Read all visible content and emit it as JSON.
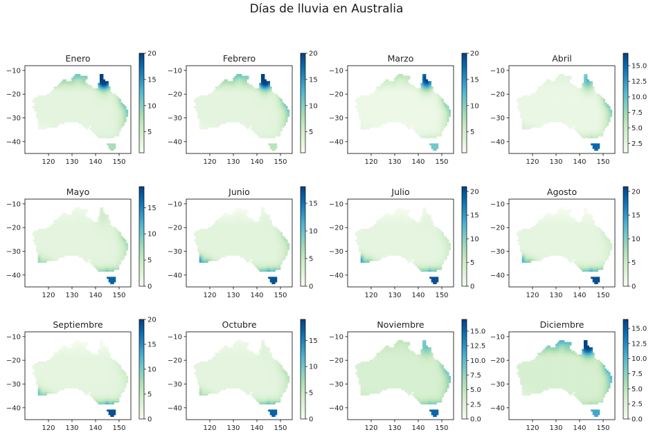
{
  "figure": {
    "title": "Días de lluvia en Australia"
  },
  "colors": {
    "colormap": "GnBu",
    "stops": [
      "#f7fcf0",
      "#e0f3db",
      "#ccebc5",
      "#a8ddb5",
      "#7bccc4",
      "#4eb3d3",
      "#2b8cbe",
      "#0868ac",
      "#084081"
    ]
  },
  "chart_data": [
    {
      "type": "heatmap",
      "title": "Enero",
      "xlim": [
        110,
        155
      ],
      "ylim": [
        -45,
        -8
      ],
      "xticks": [
        "120",
        "130",
        "140",
        "150"
      ],
      "yticks": [
        "−10",
        "−20",
        "−30",
        "−40"
      ],
      "colorbar": {
        "range": [
          1,
          20
        ],
        "ticks": [
          5,
          10,
          15,
          20
        ],
        "tick_labels": [
          "5",
          "10",
          "15",
          "20"
        ]
      },
      "regions": {
        "north": 11,
        "cape_york": 19,
        "east_coast": 12,
        "interior": 3,
        "southwest": 2,
        "southeast": 4,
        "tasmania": 8
      }
    },
    {
      "type": "heatmap",
      "title": "Febrero",
      "xlim": [
        110,
        155
      ],
      "ylim": [
        -45,
        -8
      ],
      "xticks": [
        "120",
        "130",
        "140",
        "150"
      ],
      "yticks": [
        "−10",
        "−20",
        "−30",
        "−40"
      ],
      "colorbar": {
        "range": [
          1,
          20
        ],
        "ticks": [
          5,
          10,
          15,
          20
        ],
        "tick_labels": [
          "5",
          "10",
          "15",
          "20"
        ]
      },
      "regions": {
        "north": 11,
        "cape_york": 19,
        "east_coast": 12,
        "interior": 3,
        "southwest": 2,
        "southeast": 4,
        "tasmania": 7
      }
    },
    {
      "type": "heatmap",
      "title": "Marzo",
      "xlim": [
        110,
        155
      ],
      "ylim": [
        -45,
        -8
      ],
      "xticks": [
        "120",
        "130",
        "140",
        "150"
      ],
      "yticks": [
        "−10",
        "−20",
        "−30",
        "−40"
      ],
      "colorbar": {
        "range": [
          1,
          20
        ],
        "ticks": [
          5,
          10,
          15,
          20
        ],
        "tick_labels": [
          "5",
          "10",
          "15",
          "20"
        ]
      },
      "regions": {
        "north": 7,
        "cape_york": 17,
        "east_coast": 11,
        "interior": 2,
        "southwest": 3,
        "southeast": 5,
        "tasmania": 11
      }
    },
    {
      "type": "heatmap",
      "title": "Abril",
      "xlim": [
        110,
        155
      ],
      "ylim": [
        -45,
        -8
      ],
      "xticks": [
        "120",
        "130",
        "140",
        "150"
      ],
      "yticks": [
        "−10",
        "−20",
        "−30",
        "−40"
      ],
      "colorbar": {
        "range": [
          1,
          17
        ],
        "ticks": [
          2.5,
          5,
          7.5,
          10,
          12.5,
          15
        ],
        "tick_labels": [
          "2.5",
          "5.0",
          "7.5",
          "10.0",
          "12.5",
          "15.0"
        ]
      },
      "regions": {
        "north": 3,
        "cape_york": 10,
        "east_coast": 10,
        "interior": 2,
        "southwest": 4,
        "southeast": 6,
        "tasmania": 15
      }
    },
    {
      "type": "heatmap",
      "title": "Mayo",
      "xlim": [
        110,
        155
      ],
      "ylim": [
        -45,
        -8
      ],
      "xticks": [
        "120",
        "130",
        "140",
        "150"
      ],
      "yticks": [
        "−10",
        "−20",
        "−30",
        "−40"
      ],
      "colorbar": {
        "range": [
          0,
          19
        ],
        "ticks": [
          0,
          5,
          10,
          15
        ],
        "tick_labels": [
          "0",
          "5",
          "10",
          "15"
        ]
      },
      "regions": {
        "north": 1,
        "cape_york": 5,
        "east_coast": 8,
        "interior": 2,
        "southwest": 9,
        "southeast": 10,
        "tasmania": 17
      }
    },
    {
      "type": "heatmap",
      "title": "Junio",
      "xlim": [
        110,
        155
      ],
      "ylim": [
        -45,
        -8
      ],
      "xticks": [
        "120",
        "130",
        "140",
        "150"
      ],
      "yticks": [
        "−10",
        "−20",
        "−30",
        "−40"
      ],
      "colorbar": {
        "range": [
          0,
          18
        ],
        "ticks": [
          0,
          5,
          10,
          15
        ],
        "tick_labels": [
          "0",
          "5",
          "10",
          "15"
        ]
      },
      "regions": {
        "north": 0,
        "cape_york": 3,
        "east_coast": 7,
        "interior": 2,
        "southwest": 14,
        "southeast": 12,
        "tasmania": 17
      }
    },
    {
      "type": "heatmap",
      "title": "Julio",
      "xlim": [
        110,
        155
      ],
      "ylim": [
        -45,
        -8
      ],
      "xticks": [
        "120",
        "130",
        "140",
        "150"
      ],
      "yticks": [
        "−10",
        "−20",
        "−30",
        "−40"
      ],
      "colorbar": {
        "range": [
          0,
          21
        ],
        "ticks": [
          0,
          5,
          10,
          15,
          20
        ],
        "tick_labels": [
          "0",
          "5",
          "10",
          "15",
          "20"
        ]
      },
      "regions": {
        "north": 0,
        "cape_york": 3,
        "east_coast": 6,
        "interior": 2,
        "southwest": 16,
        "southeast": 13,
        "tasmania": 20
      }
    },
    {
      "type": "heatmap",
      "title": "Agosto",
      "xlim": [
        110,
        155
      ],
      "ylim": [
        -45,
        -8
      ],
      "xticks": [
        "120",
        "130",
        "140",
        "150"
      ],
      "yticks": [
        "−10",
        "−20",
        "−30",
        "−40"
      ],
      "colorbar": {
        "range": [
          0,
          21
        ],
        "ticks": [
          0,
          5,
          10,
          15,
          20
        ],
        "tick_labels": [
          "0",
          "5",
          "10",
          "15",
          "20"
        ]
      },
      "regions": {
        "north": 0,
        "cape_york": 2,
        "east_coast": 5,
        "interior": 2,
        "southwest": 15,
        "southeast": 14,
        "tasmania": 20
      }
    },
    {
      "type": "heatmap",
      "title": "Septiembre",
      "xlim": [
        110,
        155
      ],
      "ylim": [
        -45,
        -8
      ],
      "xticks": [
        "120",
        "130",
        "140",
        "150"
      ],
      "yticks": [
        "−10",
        "−20",
        "−30",
        "−40"
      ],
      "colorbar": {
        "range": [
          0,
          20
        ],
        "ticks": [
          0,
          5,
          10,
          15,
          20
        ],
        "tick_labels": [
          "0",
          "5",
          "10",
          "15",
          "20"
        ]
      },
      "regions": {
        "north": 0,
        "cape_york": 2,
        "east_coast": 5,
        "interior": 2,
        "southwest": 12,
        "southeast": 13,
        "tasmania": 19
      }
    },
    {
      "type": "heatmap",
      "title": "Octubre",
      "xlim": [
        110,
        155
      ],
      "ylim": [
        -45,
        -8
      ],
      "xticks": [
        "120",
        "130",
        "140",
        "150"
      ],
      "yticks": [
        "−10",
        "−20",
        "−30",
        "−40"
      ],
      "colorbar": {
        "range": [
          0,
          19
        ],
        "ticks": [
          0,
          5,
          10,
          15
        ],
        "tick_labels": [
          "0",
          "5",
          "10",
          "15"
        ]
      },
      "regions": {
        "north": 1,
        "cape_york": 3,
        "east_coast": 7,
        "interior": 2,
        "southwest": 8,
        "southeast": 11,
        "tasmania": 17
      }
    },
    {
      "type": "heatmap",
      "title": "Noviembre",
      "xlim": [
        110,
        155
      ],
      "ylim": [
        -45,
        -8
      ],
      "xticks": [
        "120",
        "130",
        "140",
        "150"
      ],
      "yticks": [
        "−10",
        "−20",
        "−30",
        "−40"
      ],
      "colorbar": {
        "range": [
          0,
          17
        ],
        "ticks": [
          0,
          2.5,
          5,
          7.5,
          10,
          12.5,
          15
        ],
        "tick_labels": [
          "0.0",
          "2.5",
          "5.0",
          "7.5",
          "10.0",
          "12.5",
          "15.0"
        ]
      },
      "regions": {
        "north": 5,
        "cape_york": 8,
        "east_coast": 10,
        "interior": 3,
        "southwest": 4,
        "southeast": 9,
        "tasmania": 15
      }
    },
    {
      "type": "heatmap",
      "title": "Diciembre",
      "xlim": [
        110,
        155
      ],
      "ylim": [
        -45,
        -8
      ],
      "xticks": [
        "120",
        "130",
        "140",
        "150"
      ],
      "yticks": [
        "−10",
        "−20",
        "−30",
        "−40"
      ],
      "colorbar": {
        "range": [
          0,
          16.5
        ],
        "ticks": [
          0,
          2.5,
          5,
          7.5,
          10,
          12.5,
          15
        ],
        "tick_labels": [
          "0.0",
          "2.5",
          "5.0",
          "7.5",
          "10.0",
          "12.5",
          "15.0"
        ]
      },
      "regions": {
        "north": 10,
        "cape_york": 14,
        "east_coast": 11,
        "interior": 3,
        "southwest": 2,
        "southeast": 6,
        "tasmania": 11
      }
    }
  ]
}
